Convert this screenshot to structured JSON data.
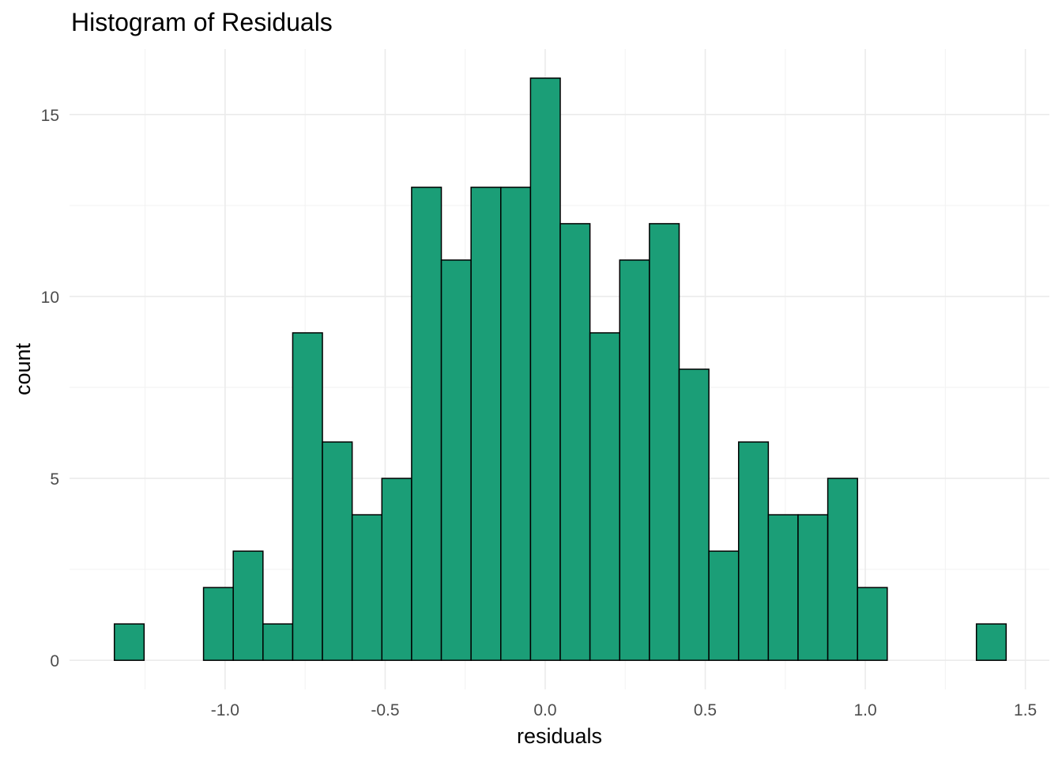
{
  "chart_data": {
    "type": "histogram",
    "title": "Histogram of Residuals",
    "xlabel": "residuals",
    "ylabel": "count",
    "bin_range": [
      -1.346,
      1.44
    ],
    "counts": [
      1,
      0,
      0,
      2,
      3,
      1,
      9,
      6,
      4,
      5,
      13,
      11,
      13,
      13,
      16,
      12,
      9,
      11,
      12,
      8,
      3,
      6,
      4,
      4,
      5,
      2,
      0,
      0,
      0,
      1
    ],
    "xlim": [
      -1.486,
      1.575
    ],
    "ylim": [
      -0.8,
      16.8
    ],
    "x_ticks": [
      -1.0,
      -0.5,
      0.0,
      0.5,
      1.0,
      1.5
    ],
    "x_tick_labels": [
      "-1.0",
      "-0.5",
      "0.0",
      "0.5",
      "1.0",
      "1.5"
    ],
    "y_ticks": [
      0,
      5,
      10,
      15
    ],
    "y_tick_labels": [
      "0",
      "5",
      "10",
      "15"
    ],
    "grid": true,
    "fill_color": "#1b9e77",
    "edge_color": "#000000"
  }
}
